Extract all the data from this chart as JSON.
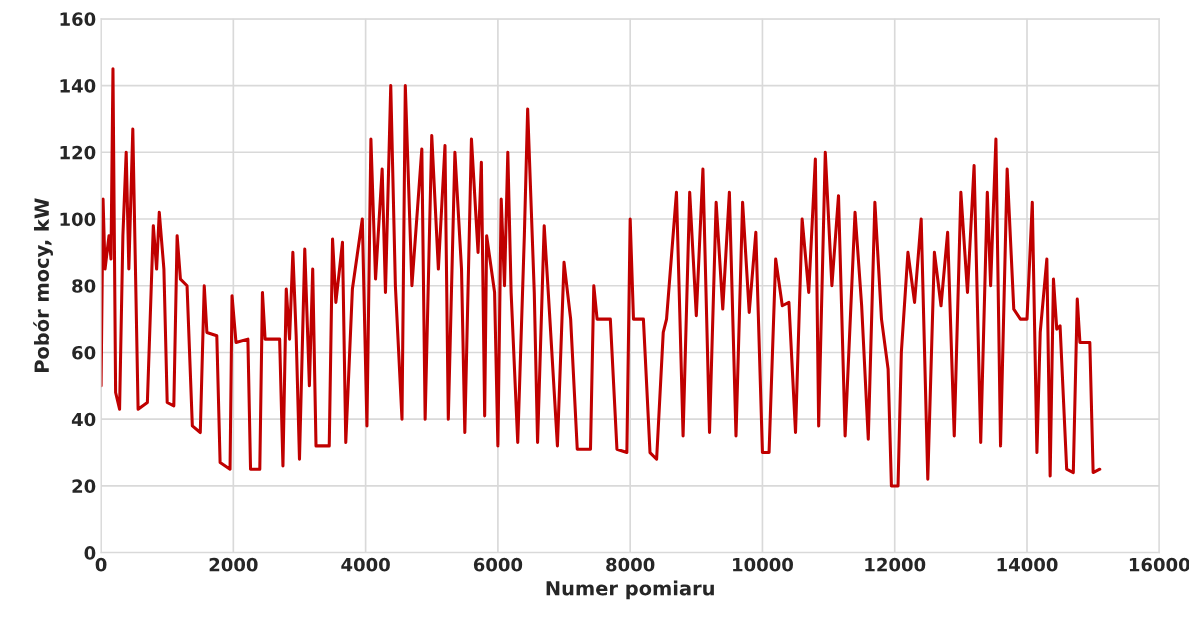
{
  "chart_data": {
    "type": "line",
    "xlabel": "Numer pomiaru",
    "ylabel": "Pobór mocy, kW",
    "xlim": [
      0,
      16000
    ],
    "xticks": [
      0,
      2000,
      4000,
      6000,
      8000,
      10000,
      12000,
      14000,
      16000
    ],
    "ylim": [
      0,
      160
    ],
    "yticks": [
      0,
      20,
      40,
      60,
      80,
      100,
      120,
      140,
      160
    ],
    "grid": true,
    "marker": "none",
    "line_style": "solid",
    "series": [
      {
        "color": "#c00000",
        "x": [
          0,
          30,
          60,
          120,
          150,
          180,
          220,
          280,
          330,
          380,
          420,
          480,
          560,
          700,
          790,
          840,
          880,
          950,
          1000,
          1100,
          1150,
          1200,
          1300,
          1380,
          1500,
          1560,
          1600,
          1750,
          1800,
          1950,
          1980,
          2040,
          2220,
          2260,
          2400,
          2440,
          2480,
          2700,
          2750,
          2800,
          2850,
          2900,
          2950,
          3000,
          3080,
          3150,
          3200,
          3250,
          3450,
          3500,
          3550,
          3650,
          3700,
          3800,
          3950,
          4020,
          4080,
          4150,
          4250,
          4300,
          4380,
          4450,
          4550,
          4600,
          4700,
          4850,
          4900,
          5000,
          5100,
          5200,
          5250,
          5350,
          5450,
          5500,
          5600,
          5700,
          5750,
          5800,
          5830,
          5950,
          6000,
          6050,
          6100,
          6150,
          6200,
          6300,
          6400,
          6450,
          6550,
          6600,
          6700,
          6780,
          6900,
          7000,
          7100,
          7200,
          7400,
          7450,
          7500,
          7700,
          7800,
          7950,
          8000,
          8050,
          8200,
          8300,
          8400,
          8500,
          8550,
          8700,
          8750,
          8800,
          8900,
          9000,
          9100,
          9200,
          9300,
          9400,
          9500,
          9600,
          9700,
          9800,
          9900,
          10000,
          10100,
          10200,
          10300,
          10400,
          10500,
          10600,
          10700,
          10800,
          10850,
          10950,
          11050,
          11150,
          11250,
          11400,
          11500,
          11600,
          11700,
          11800,
          11900,
          11950,
          12050,
          12100,
          12200,
          12300,
          12400,
          12500,
          12600,
          12700,
          12800,
          12900,
          13000,
          13100,
          13200,
          13300,
          13400,
          13450,
          13530,
          13600,
          13700,
          13800,
          13900,
          14000,
          14080,
          14150,
          14200,
          14300,
          14350,
          14400,
          14450,
          14500,
          14600,
          14700,
          14760,
          14800,
          14950,
          15000,
          15100
        ],
        "values": [
          50,
          106,
          85,
          95,
          88,
          145,
          48,
          43,
          95,
          120,
          85,
          127,
          43,
          45,
          98,
          85,
          102,
          85,
          45,
          44,
          95,
          82,
          80,
          38,
          36,
          80,
          66,
          65,
          27,
          25,
          77,
          63,
          64,
          25,
          25,
          78,
          64,
          64,
          26,
          79,
          64,
          90,
          65,
          28,
          91,
          50,
          85,
          32,
          32,
          94,
          75,
          93,
          33,
          79,
          100,
          38,
          124,
          82,
          115,
          78,
          140,
          80,
          40,
          140,
          80,
          121,
          40,
          125,
          85,
          122,
          40,
          120,
          85,
          36,
          124,
          90,
          117,
          41,
          95,
          78,
          32,
          106,
          80,
          120,
          78,
          33,
          95,
          133,
          78,
          33,
          98,
          72,
          32,
          87,
          70,
          31,
          31,
          80,
          70,
          70,
          31,
          30,
          100,
          70,
          70,
          30,
          28,
          66,
          70,
          108,
          72,
          35,
          108,
          71,
          115,
          36,
          105,
          73,
          108,
          35,
          105,
          72,
          96,
          30,
          30,
          88,
          74,
          75,
          36,
          100,
          78,
          118,
          38,
          120,
          80,
          107,
          35,
          102,
          74,
          34,
          105,
          70,
          55,
          20,
          20,
          60,
          90,
          75,
          100,
          22,
          90,
          74,
          96,
          35,
          108,
          78,
          116,
          33,
          108,
          80,
          124,
          32,
          115,
          73,
          70,
          70,
          105,
          30,
          66,
          88,
          23,
          82,
          67,
          68,
          25,
          24,
          76,
          63,
          63,
          24,
          25
        ]
      }
    ]
  }
}
